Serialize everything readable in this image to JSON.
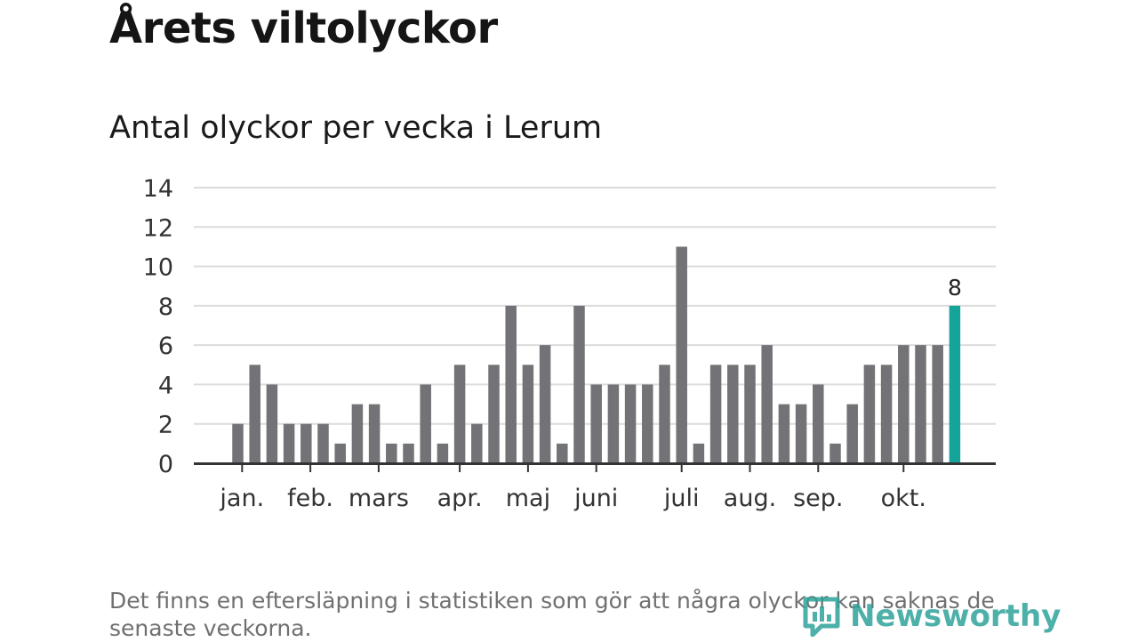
{
  "title": "Årets viltolyckor",
  "subtitle": "Antal olyckor per vecka i Lerum",
  "footnote": "Det finns en eftersläpning i statistiken som gör att några olyckor kan saknas de senaste veckorna.",
  "brand": "Newsworthy",
  "colors": {
    "bar": "#737277",
    "highlight": "#14a49a",
    "grid": "#dcdcdc",
    "axis": "#333333",
    "brand": "#2fa39b"
  },
  "chart_data": {
    "type": "bar",
    "title": "Antal olyckor per vecka i Lerum",
    "xlabel": "",
    "ylabel": "",
    "ylim": [
      0,
      14
    ],
    "yticks": [
      0,
      2,
      4,
      6,
      8,
      10,
      12,
      14
    ],
    "grid": true,
    "values": [
      2,
      5,
      4,
      2,
      2,
      2,
      1,
      3,
      3,
      1,
      1,
      4,
      1,
      5,
      2,
      5,
      8,
      5,
      6,
      1,
      8,
      4,
      4,
      4,
      4,
      5,
      11,
      1,
      5,
      5,
      5,
      6,
      3,
      3,
      4,
      1,
      3,
      5,
      5,
      6,
      6,
      6,
      8
    ],
    "highlight_index": 42,
    "highlight_label": "8",
    "month_labels": [
      {
        "label": "jan.",
        "bar_index": 0.25
      },
      {
        "label": "feb.",
        "bar_index": 4.25
      },
      {
        "label": "mars",
        "bar_index": 8.25
      },
      {
        "label": "apr.",
        "bar_index": 13
      },
      {
        "label": "maj",
        "bar_index": 17
      },
      {
        "label": "juni",
        "bar_index": 21
      },
      {
        "label": "juli",
        "bar_index": 26
      },
      {
        "label": "aug.",
        "bar_index": 30
      },
      {
        "label": "sep.",
        "bar_index": 34
      },
      {
        "label": "okt.",
        "bar_index": 39
      }
    ]
  }
}
